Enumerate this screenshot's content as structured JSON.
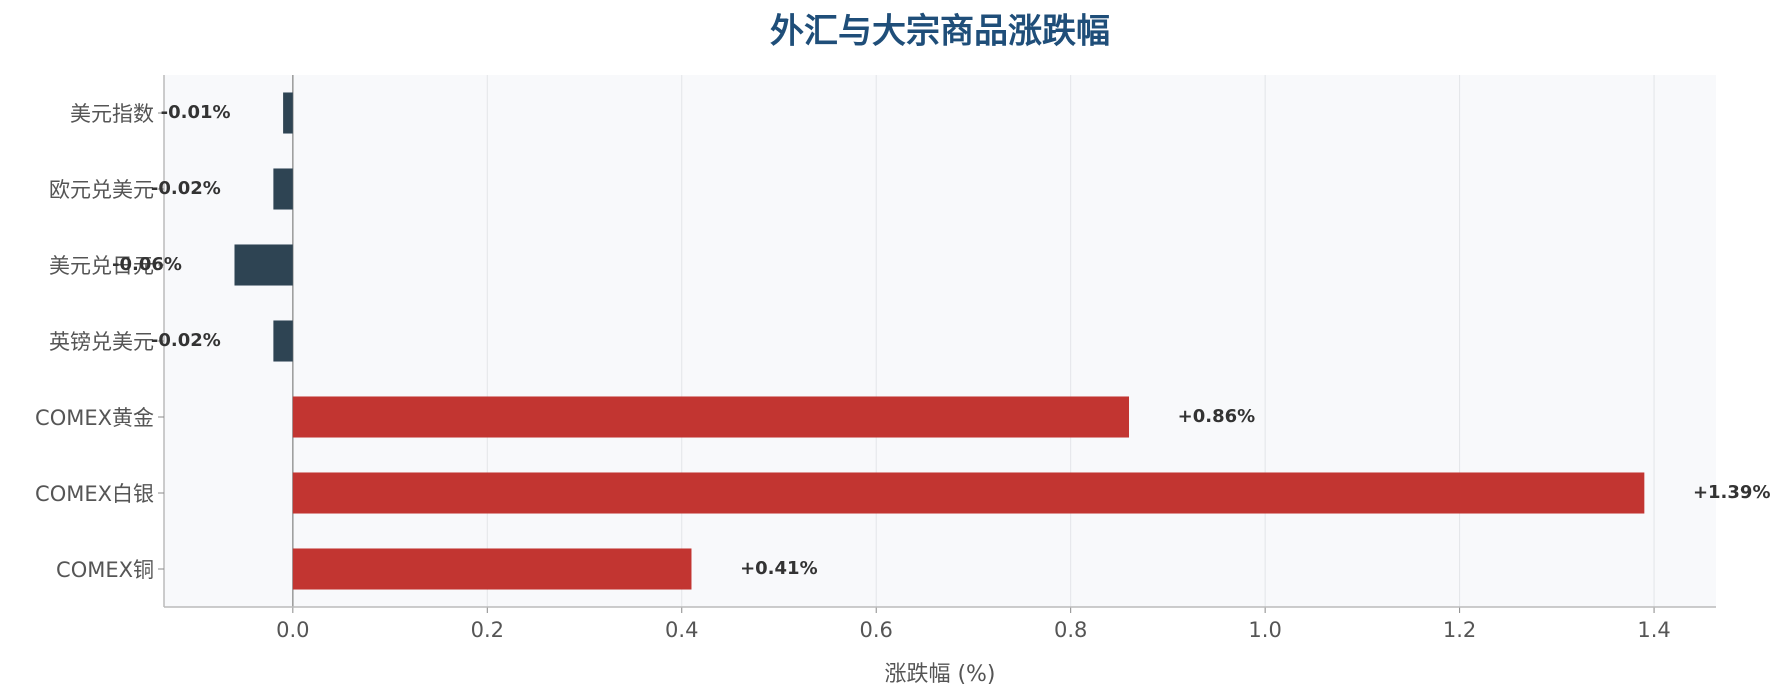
{
  "chart_data": {
    "type": "hbar",
    "title": "外汇与大宗商品涨跌幅",
    "x_label": "涨跌幅 (%)",
    "categories": [
      "美元指数",
      "欧元兑美元",
      "美元兑日元",
      "英镑兑美元",
      "COMEX黄金",
      "COMEX白银",
      "COMEX铜"
    ],
    "values": [
      -0.01,
      -0.02,
      -0.06,
      -0.02,
      0.86,
      1.39,
      0.41
    ],
    "value_labels": [
      "-0.01%",
      "-0.02%",
      "-0.06%",
      "-0.02%",
      "+0.86%",
      "+1.39%",
      "+0.41%"
    ],
    "colors": [
      "#2e4453",
      "#2e4453",
      "#2e4453",
      "#2e4453",
      "#c23531",
      "#c23531",
      "#c23531"
    ],
    "xlim": [
      -0.1325,
      1.4637
    ],
    "xticks": [
      {
        "value": 0,
        "label": "0.0"
      },
      0.2,
      0.4,
      0.6,
      0.8,
      {
        "value": 1,
        "label": "1.0"
      },
      1.2,
      1.4
    ],
    "grid": true
  }
}
